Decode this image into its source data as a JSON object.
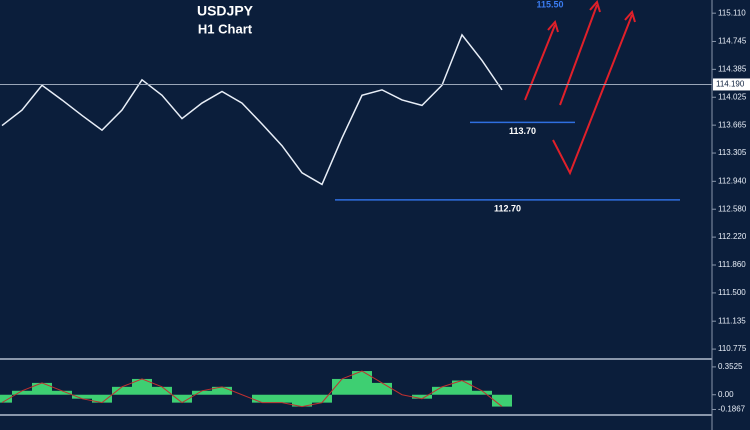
{
  "chart_data": [
    {
      "type": "line",
      "title": "USDJPY",
      "subtitle": "H1 Chart",
      "color": "#e8eef7",
      "values": [
        113.66,
        113.86,
        114.18,
        113.99,
        113.79,
        113.6,
        113.86,
        114.25,
        114.05,
        113.75,
        113.95,
        114.1,
        113.95,
        113.68,
        113.4,
        113.05,
        112.9,
        113.5,
        114.05,
        114.12,
        113.99,
        113.92,
        114.18,
        114.83,
        114.5,
        114.12
      ],
      "ylim": [
        110.66,
        115.28
      ],
      "yticks": [
        {
          "value": 115.11,
          "label": "115.110"
        },
        114.745,
        114.385,
        {
          "value": 114.025,
          "label": "114.025"
        },
        113.665,
        113.305,
        {
          "value": 112.94,
          "label": "112.940"
        },
        {
          "value": 112.58,
          "label": "112.580"
        },
        {
          "value": 112.22,
          "label": "112.220"
        },
        {
          "value": 111.86,
          "label": "111.860"
        },
        {
          "value": 111.5,
          "label": "111.500"
        },
        111.135,
        110.775
      ],
      "current": {
        "value": 114.19,
        "label": "114.190"
      },
      "levels": [
        {
          "value": 113.7,
          "label": "113.70"
        },
        {
          "value": 112.7,
          "label": "112.70"
        }
      ],
      "target": {
        "value": 115.5,
        "label": "115.50"
      }
    },
    {
      "type": "area",
      "color": "#3ecf72",
      "values": [
        -0.1,
        0.05,
        0.15,
        0.05,
        -0.05,
        -0.1,
        0.1,
        0.2,
        0.1,
        -0.1,
        0.05,
        0.1,
        0.0,
        -0.1,
        -0.1,
        -0.15,
        -0.1,
        0.2,
        0.3,
        0.15,
        0.0,
        -0.05,
        0.1,
        0.18,
        0.05,
        -0.15
      ],
      "ylim": [
        -0.244,
        0.44
      ],
      "yticks": [
        0.3525,
        {
          "value": 0,
          "label": "0.00"
        },
        -0.1867
      ]
    }
  ]
}
